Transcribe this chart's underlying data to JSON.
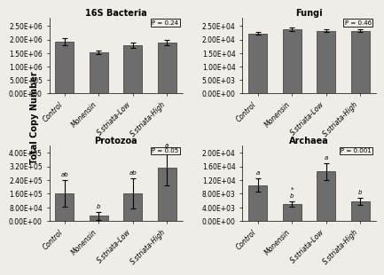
{
  "subplots": [
    {
      "title": "16S Bacteria",
      "p_value": "P = 0.24",
      "categories": [
        "Control",
        "Monensin",
        "S.striata-Low",
        "S.striata-High"
      ],
      "values": [
        1920000.0,
        1520000.0,
        1780000.0,
        1880000.0
      ],
      "errors": [
        120000.0,
        80000.0,
        100000.0,
        90000.0
      ],
      "ylim": [
        0,
        2800000.0
      ],
      "yticks": [
        0,
        500000.0,
        1000000.0,
        1500000.0,
        2000000.0,
        2500000.0
      ],
      "ytick_labels": [
        "0.00E+00",
        "5.00E+05",
        "1.00E+06",
        "1.50E+06",
        "2.00E+06",
        "2.50E+06"
      ],
      "sig_labels": [
        "",
        "",
        "",
        ""
      ],
      "row": 0,
      "col": 0
    },
    {
      "title": "Fungi",
      "p_value": "P = 0.46",
      "categories": [
        "Control",
        "Monensin",
        "S.striata-Low",
        "S.striata-High"
      ],
      "values": [
        22300.0,
        23800.0,
        23200.0,
        23300.0
      ],
      "errors": [
        500.0,
        600.0,
        500.0,
        400.0
      ],
      "ylim": [
        0,
        28000.0
      ],
      "yticks": [
        0,
        5000.0,
        10000.0,
        15000.0,
        20000.0,
        25000.0
      ],
      "ytick_labels": [
        "0.00E+00",
        "5.00E+03",
        "1.00E+04",
        "1.50E+04",
        "2.00E+04",
        "2.50E+04"
      ],
      "sig_labels": [
        "",
        "",
        "",
        ""
      ],
      "row": 0,
      "col": 1
    },
    {
      "title": "Protozoa",
      "p_value": "P = 0.05",
      "categories": [
        "Control",
        "Monensin",
        "S.striata-Low",
        "S.striata-High"
      ],
      "values": [
        162000.0,
        30000.0,
        162000.0,
        310000.0
      ],
      "errors": [
        80000.0,
        25000.0,
        90000.0,
        100000.0
      ],
      "ylim": [
        0,
        440000.0
      ],
      "yticks": [
        0,
        80000.0,
        160000.0,
        240000.0,
        320000.0,
        400000.0
      ],
      "ytick_labels": [
        "0.00E+00",
        "8.00E+04",
        "1.60E+05",
        "2.40E+05",
        "3.20E+05",
        "4.00E+05"
      ],
      "sig_labels": [
        "ab",
        "b",
        "ab",
        "a"
      ],
      "row": 1,
      "col": 0
    },
    {
      "title": "Archaea",
      "p_value": "P = 0.001",
      "categories": [
        "Control",
        "Monensin",
        "S.striata-Low",
        "S.striata-High"
      ],
      "values": [
        10500.0,
        5000.0,
        14500.0,
        5800.0
      ],
      "errors": [
        2000.0,
        800.0,
        2500.0,
        1000.0
      ],
      "ylim": [
        0,
        22000.0
      ],
      "yticks": [
        0,
        4000.0,
        8000.0,
        12000.0,
        16000.0,
        20000.0
      ],
      "ytick_labels": [
        "0.00E+00",
        "4.00E+03",
        "8.00E+03",
        "1.20E+04",
        "1.60E+04",
        "2.00E+04"
      ],
      "sig_labels": [
        "a",
        "*\nb",
        "a",
        "b"
      ],
      "row": 1,
      "col": 1
    }
  ],
  "bar_color": "#6d6d6d",
  "bar_edgecolor": "#333333",
  "ylabel": "Total Copy Number",
  "background_color": "#f0ede8",
  "title_fontsize": 7,
  "tick_fontsize": 5.5,
  "xlabel_fontsize": 5.5,
  "ylabel_fontsize": 7
}
